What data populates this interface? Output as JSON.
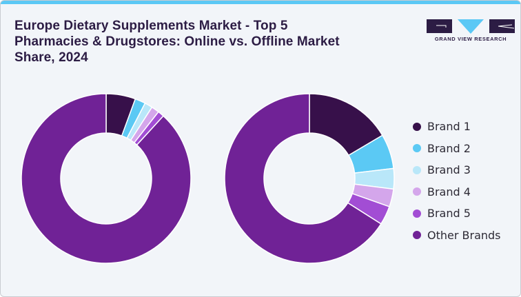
{
  "title": "Europe Dietary Supplements Market - Top 5 Pharmacies & Drugstores: Online vs. Offline Market Share, 2024",
  "logo": {
    "text": "GRAND VIEW RESEARCH",
    "name": "grand-view-research-logo"
  },
  "colors": {
    "Brand 1": "#37104a",
    "Brand 2": "#5bc9f4",
    "Brand 3": "#b9e7f9",
    "Brand 4": "#d4a6eb",
    "Brand 5": "#a24dd4",
    "Other Brands": "#702296",
    "accent_bar": "#5bc8f5",
    "title": "#2c1c44",
    "background": "#f2f5f9"
  },
  "legend": {
    "position": "right",
    "items": [
      {
        "label": "Brand 1",
        "color": "#37104a"
      },
      {
        "label": "Brand 2",
        "color": "#5bc9f4"
      },
      {
        "label": "Brand 3",
        "color": "#b9e7f9"
      },
      {
        "label": "Brand 4",
        "color": "#d4a6eb"
      },
      {
        "label": "Brand 5",
        "color": "#a24dd4"
      },
      {
        "label": "Other Brands",
        "color": "#702296"
      }
    ]
  },
  "chart_data": [
    {
      "type": "pie",
      "variant": "donut",
      "title": "",
      "categories": [
        "Brand 1",
        "Brand 2",
        "Brand 3",
        "Brand 4",
        "Brand 5",
        "Other Brands"
      ],
      "values": [
        5.6,
        2.0,
        1.5,
        1.5,
        1.2,
        88.2
      ],
      "unit": "%",
      "note": "Left donut (values estimated from slice angles; no data labels shown)"
    },
    {
      "type": "pie",
      "variant": "donut",
      "title": "",
      "categories": [
        "Brand 1",
        "Brand 2",
        "Brand 3",
        "Brand 4",
        "Brand 5",
        "Other Brands"
      ],
      "values": [
        16.5,
        6.6,
        3.9,
        3.4,
        3.6,
        66.0
      ],
      "unit": "%",
      "note": "Right donut (values estimated from slice angles; no data labels shown)"
    }
  ]
}
